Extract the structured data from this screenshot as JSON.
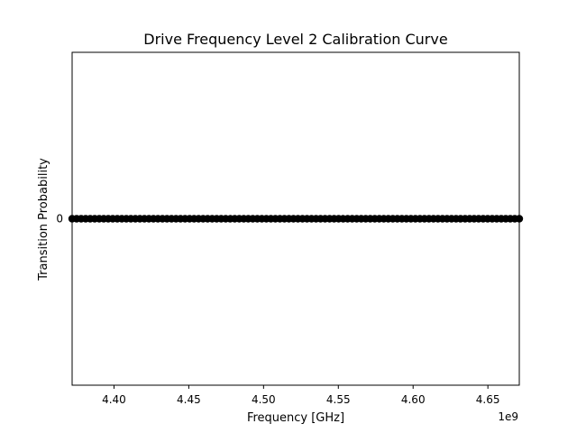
{
  "chart_data": {
    "type": "scatter",
    "title": "Drive Frequency Level 2 Calibration Curve",
    "xlabel": "Frequency [GHz]",
    "ylabel": "Transition Probability",
    "x_offset_label": "1e9",
    "xlim": [
      4.372,
      4.671
    ],
    "ylim": [
      -1,
      1
    ],
    "x_ticks": [
      4.4,
      4.45,
      4.5,
      4.55,
      4.6,
      4.65
    ],
    "x_tick_labels": [
      "4.40",
      "4.45",
      "4.50",
      "4.55",
      "4.60",
      "4.65"
    ],
    "y_ticks": [
      0
    ],
    "y_tick_labels": [
      "0"
    ],
    "grid": false,
    "marker_color": "#000000",
    "series": [
      {
        "x_start": 4.372,
        "x_end": 4.671,
        "num_points": 100,
        "y": 0
      }
    ]
  }
}
